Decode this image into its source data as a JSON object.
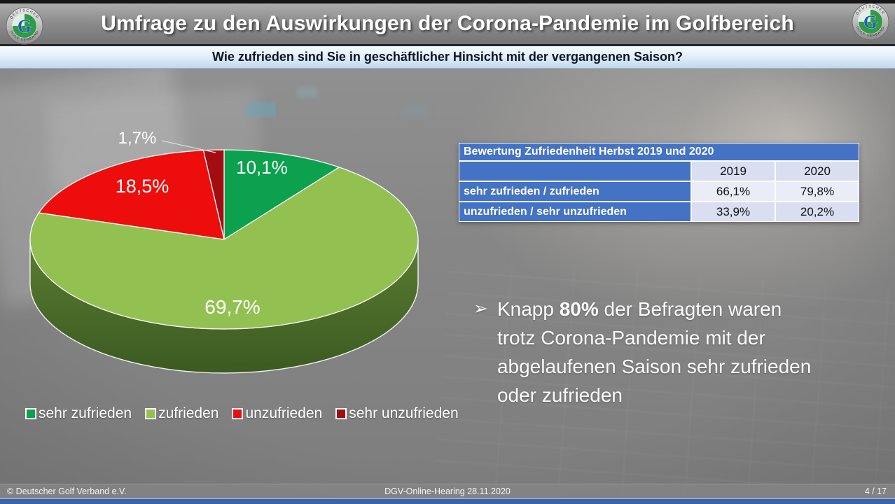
{
  "header": {
    "title": "Umfrage zu den Auswirkungen der Corona-Pandemie im Golfbereich",
    "logo": {
      "letter": "G",
      "ring_top": "DEUTSCHER",
      "ring_bottom": "GOLF VERBAND"
    }
  },
  "subheader": {
    "question": "Wie zufrieden sind Sie in geschäftlicher Hinsicht mit der vergangenen Saison?"
  },
  "chart_data": [
    {
      "type": "pie",
      "style": "3d-pie",
      "labels": [
        "sehr zufrieden",
        "zufrieden",
        "unzufrieden",
        "sehr unzufrieden"
      ],
      "values": [
        10.1,
        69.7,
        18.5,
        1.7
      ],
      "value_labels": [
        "10,1%",
        "69,7%",
        "18,5%",
        "1,7%"
      ],
      "colors": [
        "#0ca14e",
        "#92c152",
        "#ee0d0d",
        "#a30d12"
      ],
      "side_colors": [
        "#5a7d33",
        "#3c5a21"
      ],
      "legend_position": "bottom",
      "unit": "%"
    },
    {
      "type": "table",
      "title": "Bewertung Zufriedenheit Herbst 2019 und 2020",
      "columns": [
        "",
        "2019",
        "2020"
      ],
      "rows": [
        [
          "sehr zufrieden / zufrieden",
          "66,1%",
          "79,8%"
        ],
        [
          "unzufrieden / sehr unzufrieden",
          "33,9%",
          "20,2%"
        ]
      ],
      "header_bg": "#4472c4",
      "band_color": "#d9def0",
      "band_color_light": "#eaecf7"
    }
  ],
  "bullet": {
    "marker": "➢",
    "line1_pre": "Knapp ",
    "line1_bold": "80%",
    "line1_post": " der Befragten waren",
    "line2": "trotz Corona-Pandemie mit der",
    "line3": "abgelaufenen Saison sehr zufrieden",
    "line4": "oder zufrieden"
  },
  "footer": {
    "left": "© Deutscher Golf Verband e.V.",
    "center": "DGV-Online-Hearing 28.11.2020",
    "right": "4 / 17",
    "accent_bar_color": "#3a63a8"
  }
}
